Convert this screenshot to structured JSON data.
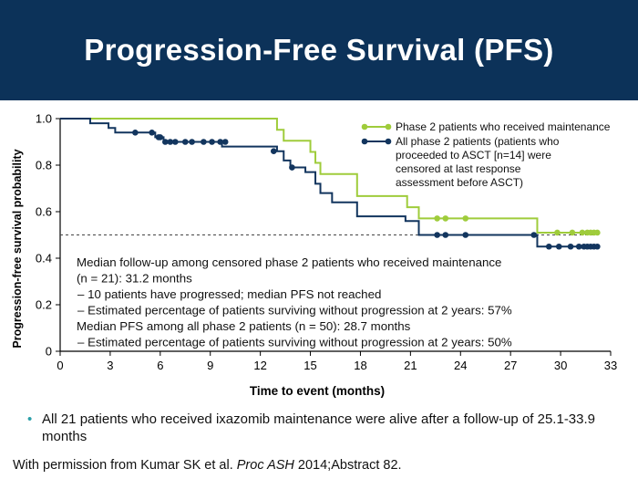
{
  "title": "Progression-Free Survival (PFS)",
  "chart_data": {
    "type": "line",
    "xlabel": "Time to event (months)",
    "ylabel": "Progression-free survival probability",
    "xlim": [
      0,
      33
    ],
    "ylim": [
      0,
      1.0
    ],
    "xticks": [
      "0",
      "3",
      "6",
      "9",
      "12",
      "15",
      "18",
      "21",
      "24",
      "27",
      "30",
      "33"
    ],
    "yticks": [
      "0",
      "0.2",
      "0.4",
      "0.6",
      "0.8",
      "1.0"
    ],
    "reference_line_y": 0.5,
    "legend_position": "top-right",
    "series": [
      {
        "name": "Phase 2 patients who received maintenance",
        "color": "#9fcc3b",
        "steps": [
          [
            0,
            1.0
          ],
          [
            13.0,
            0.952
          ],
          [
            13.4,
            0.905
          ],
          [
            15.0,
            0.857
          ],
          [
            15.3,
            0.81
          ],
          [
            15.6,
            0.762
          ],
          [
            17.8,
            0.667
          ],
          [
            20.8,
            0.619
          ],
          [
            21.5,
            0.571
          ],
          [
            28.6,
            0.51
          ],
          [
            32.2,
            0.51
          ]
        ],
        "censored": [
          [
            22.6,
            0.571
          ],
          [
            23.1,
            0.571
          ],
          [
            24.3,
            0.571
          ],
          [
            29.8,
            0.51
          ],
          [
            30.7,
            0.51
          ],
          [
            31.3,
            0.51
          ],
          [
            31.6,
            0.51
          ],
          [
            31.8,
            0.51
          ],
          [
            32.0,
            0.51
          ],
          [
            32.2,
            0.51
          ]
        ]
      },
      {
        "name": "All phase 2 patients (patients who proceeded to ASCT [n=14] were censored at last response assessment before ASCT)",
        "color": "#12355e",
        "steps": [
          [
            0,
            1.0
          ],
          [
            1.8,
            0.98
          ],
          [
            2.9,
            0.96
          ],
          [
            3.3,
            0.94
          ],
          [
            5.7,
            0.92
          ],
          [
            6.2,
            0.9
          ],
          [
            9.7,
            0.88
          ],
          [
            13.0,
            0.86
          ],
          [
            13.4,
            0.82
          ],
          [
            13.8,
            0.79
          ],
          [
            14.7,
            0.77
          ],
          [
            15.3,
            0.72
          ],
          [
            15.6,
            0.68
          ],
          [
            16.3,
            0.64
          ],
          [
            17.8,
            0.58
          ],
          [
            20.7,
            0.56
          ],
          [
            21.5,
            0.5
          ],
          [
            28.6,
            0.45
          ],
          [
            32.2,
            0.45
          ]
        ],
        "censored": [
          [
            4.5,
            0.94
          ],
          [
            5.5,
            0.94
          ],
          [
            5.9,
            0.92
          ],
          [
            6.0,
            0.92
          ],
          [
            6.3,
            0.9
          ],
          [
            6.6,
            0.9
          ],
          [
            6.9,
            0.9
          ],
          [
            7.5,
            0.9
          ],
          [
            7.9,
            0.9
          ],
          [
            8.6,
            0.9
          ],
          [
            9.1,
            0.9
          ],
          [
            9.6,
            0.9
          ],
          [
            9.9,
            0.9
          ],
          [
            12.8,
            0.86
          ],
          [
            13.9,
            0.79
          ],
          [
            22.6,
            0.5
          ],
          [
            23.1,
            0.5
          ],
          [
            24.3,
            0.5
          ],
          [
            28.4,
            0.5
          ],
          [
            29.3,
            0.45
          ],
          [
            29.9,
            0.45
          ],
          [
            30.6,
            0.45
          ],
          [
            31.1,
            0.45
          ],
          [
            31.4,
            0.45
          ],
          [
            31.6,
            0.45
          ],
          [
            31.8,
            0.45
          ],
          [
            32.0,
            0.45
          ],
          [
            32.2,
            0.45
          ]
        ]
      }
    ],
    "annotation_lines": [
      {
        "text": "Median follow-up among censored phase 2 patients who received maintenance",
        "indent": false
      },
      {
        "text": "(n = 21): 31.2 months",
        "indent": false
      },
      {
        "text": "–   10 patients have progressed; median PFS not reached",
        "indent": true
      },
      {
        "text": "–   Estimated percentage of patients surviving without progression at 2 years: 57%",
        "indent": true
      },
      {
        "text": "Median PFS among all phase 2 patients (n = 50): 28.7 months",
        "indent": false
      },
      {
        "text": "–   Estimated percentage of patients surviving without progression at 2 years: 50%",
        "indent": true
      }
    ]
  },
  "legend_lines": [
    [
      "Phase 2 patients who received maintenance"
    ],
    [
      "All phase 2 patients (patients who",
      "proceeded to ASCT [n=14] were",
      "censored at last response",
      "assessment before ASCT)"
    ]
  ],
  "bullet_text": "All 21 patients who received ixazomib maintenance were alive after a follow-up of 25.1-33.9 months",
  "footer": {
    "prefix": "With permission from Kumar SK et al. ",
    "journal": "Proc ASH",
    "suffix": " 2014;Abstract 82."
  }
}
